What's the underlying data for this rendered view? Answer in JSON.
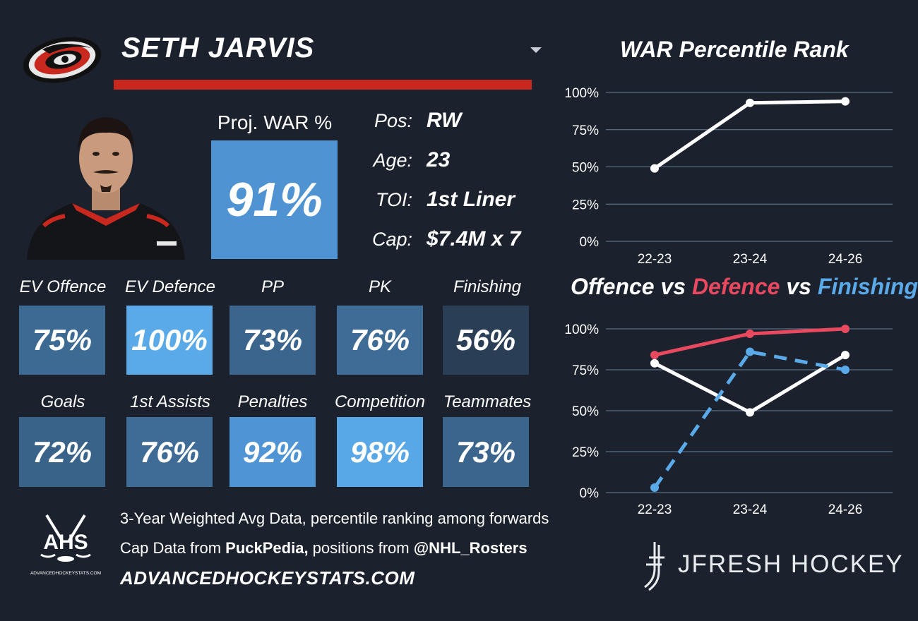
{
  "header": {
    "player_name": "SETH JARVIS",
    "dropdown_icon": "caret-down-icon",
    "team_logo": "hurricanes-logo",
    "accent_color": "#c8281e"
  },
  "proj_war": {
    "label": "Proj. WAR %",
    "value": "91%",
    "color": "#4f93d2"
  },
  "info": [
    {
      "label": "Pos:",
      "value": "RW"
    },
    {
      "label": "Age:",
      "value": "23"
    },
    {
      "label": "TOI:",
      "value": "1st Liner"
    },
    {
      "label": "Cap:",
      "value": "$7.4M x 7"
    }
  ],
  "stats_row1": [
    {
      "label": "EV Offence",
      "value": "75%",
      "color": "#3d6a93"
    },
    {
      "label": "EV Defence",
      "value": "100%",
      "color": "#5aaae9"
    },
    {
      "label": "PP",
      "value": "73%",
      "color": "#3b658c"
    },
    {
      "label": "PK",
      "value": "76%",
      "color": "#3f6c96"
    },
    {
      "label": "Finishing",
      "value": "56%",
      "color": "#2a3f55"
    }
  ],
  "stats_row2": [
    {
      "label": "Goals",
      "value": "72%",
      "color": "#3a6389"
    },
    {
      "label": "1st Assists",
      "value": "76%",
      "color": "#3f6c96"
    },
    {
      "label": "Penalties",
      "value": "92%",
      "color": "#4f95d5"
    },
    {
      "label": "Competition",
      "value": "98%",
      "color": "#58a7e6"
    },
    {
      "label": "Teammates",
      "value": "73%",
      "color": "#3b658c"
    }
  ],
  "footer": {
    "line1": "3-Year Weighted Avg Data, percentile ranking among forwards",
    "line2_pre": "Cap Data from ",
    "line2_bold1": "PuckPedia,",
    "line2_mid": " positions from ",
    "line2_bold2": "@NHL_Rosters",
    "line3": "ADVANCEDHOCKEYSTATS.COM",
    "ahs_logo_text": "AHS",
    "ahs_logo_small": "ADVANCEDHOCKEYSTATS.COM",
    "jfresh_text": "JFRESH HOCKEY"
  },
  "chart_data": [
    {
      "type": "line",
      "title": "WAR Percentile Rank",
      "x": [
        "22-23",
        "23-24",
        "24-26"
      ],
      "ylim": [
        0,
        100
      ],
      "yticks": [
        "0%",
        "25%",
        "50%",
        "75%",
        "100%"
      ],
      "grid": true,
      "series": [
        {
          "values": [
            49,
            93,
            94
          ],
          "color": "#ffffff",
          "dashed": false
        }
      ]
    },
    {
      "type": "line",
      "title_parts": [
        {
          "text": "Offence",
          "color": "#ffffff"
        },
        {
          "text": " vs ",
          "color": "#ffffff"
        },
        {
          "text": "Defence",
          "color": "#e8495f"
        },
        {
          "text": " vs ",
          "color": "#ffffff"
        },
        {
          "text": "Finishing",
          "color": "#5aaae9"
        }
      ],
      "x": [
        "22-23",
        "23-24",
        "24-26"
      ],
      "ylim": [
        0,
        100
      ],
      "yticks": [
        "0%",
        "25%",
        "50%",
        "75%",
        "100%"
      ],
      "grid": true,
      "series": [
        {
          "name": "Defence",
          "values": [
            84,
            97,
            100
          ],
          "color": "#e8495f",
          "dashed": false
        },
        {
          "name": "Offence",
          "values": [
            79,
            49,
            84
          ],
          "color": "#ffffff",
          "dashed": false
        },
        {
          "name": "Finishing",
          "values": [
            3,
            86,
            75
          ],
          "color": "#5aaae9",
          "dashed": true
        }
      ]
    }
  ]
}
